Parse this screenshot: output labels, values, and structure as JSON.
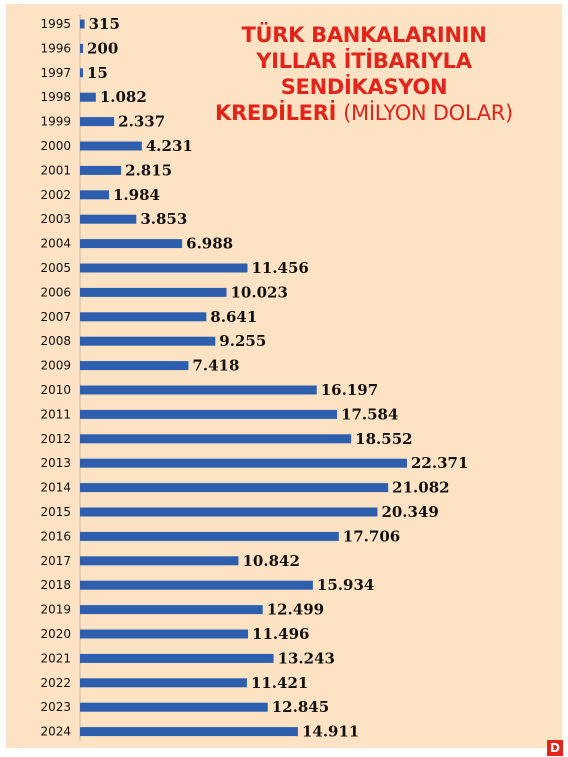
{
  "title": {
    "line1": "TÜRK BANKALARININ",
    "line2": "YILLAR İTİBARIYLA",
    "line3": "SENDİKASYON",
    "line4_bold": "KREDİLERİ",
    "line4_unit": "(MİLYON DOLAR)"
  },
  "colors": {
    "background": "#fde3c4",
    "bar": "#2e5fae",
    "title": "#e3241b"
  },
  "logo": {
    "letter": "D"
  },
  "chart_data": {
    "type": "bar",
    "orientation": "horizontal",
    "title": "TÜRK BANKALARININ YILLAR İTİBARIYLA SENDİKASYON KREDİLERİ (MİLYON DOLAR)",
    "xlabel": "",
    "ylabel": "",
    "categories": [
      "1995",
      "1996",
      "1997",
      "1998",
      "1999",
      "2000",
      "2001",
      "2002",
      "2003",
      "2004",
      "2005",
      "2006",
      "2007",
      "2008",
      "2009",
      "2010",
      "2011",
      "2012",
      "2013",
      "2014",
      "2015",
      "2016",
      "2017",
      "2018",
      "2019",
      "2020",
      "2021",
      "2022",
      "2023",
      "2024"
    ],
    "values": [
      315,
      200,
      15,
      1082,
      2337,
      4231,
      2815,
      1984,
      3853,
      6988,
      11456,
      10023,
      8641,
      9255,
      7418,
      16197,
      17584,
      18552,
      22371,
      21082,
      20349,
      17706,
      10842,
      15934,
      12499,
      11496,
      13243,
      11421,
      12845,
      14911
    ],
    "value_labels": [
      "315",
      "200",
      "15",
      "1.082",
      "2.337",
      "4.231",
      "2.815",
      "1.984",
      "3.853",
      "6.988",
      "11.456",
      "10.023",
      "8.641",
      "9.255",
      "7.418",
      "16.197",
      "17.584",
      "18.552",
      "22.371",
      "21.082",
      "20.349",
      "17.706",
      "10.842",
      "15.934",
      "12.499",
      "11.496",
      "13.243",
      "11.421",
      "12.845",
      "14.911"
    ],
    "grid": false,
    "legend": "none"
  }
}
